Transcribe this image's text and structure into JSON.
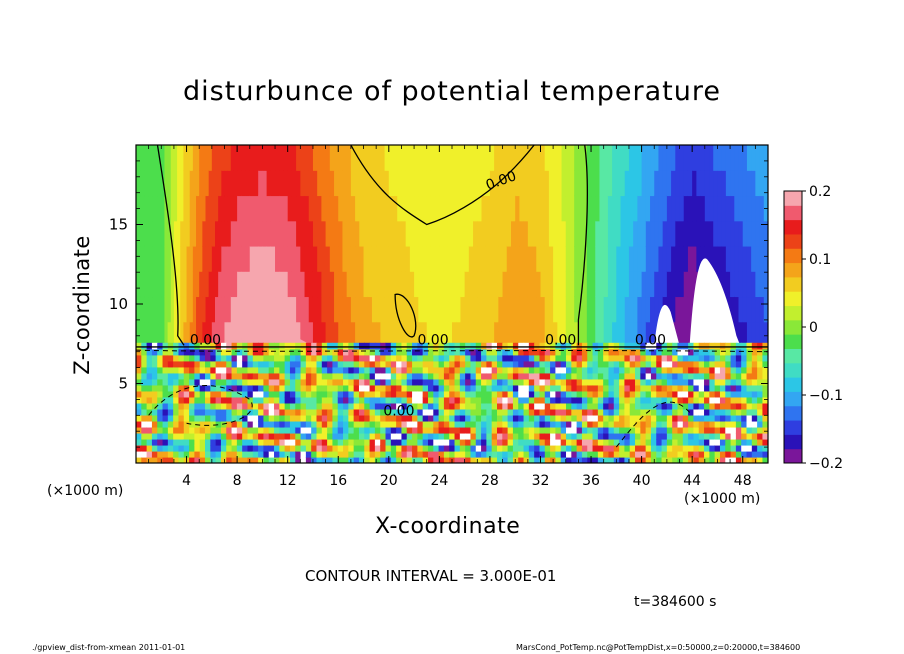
{
  "page": {
    "title": "disturbunce of potential temperature",
    "x_axis_label": "X-coordinate",
    "y_axis_label": "Z-coordinate",
    "x_unit_left": "(×1000 m)",
    "x_unit_right": "(×1000 m)",
    "contour_interval": "CONTOUR INTERVAL = 3.000E-01",
    "time_label": "t=384600 s",
    "footer_left": "./gpview_dist-from-xmean   2011-01-01",
    "footer_right": "MarsCond_PotTemp.nc@PotTempDist,x=0:50000,z=0:20000,t=384600"
  },
  "chart_data": {
    "type": "heatmap",
    "title": "disturbunce of potential temperature",
    "xlabel": "X-coordinate",
    "ylabel": "Z-coordinate",
    "x_unit": "(×1000 m)",
    "xlim": [
      0,
      50
    ],
    "ylim": [
      0,
      20
    ],
    "x_ticks": [
      4,
      8,
      12,
      16,
      20,
      24,
      28,
      32,
      36,
      40,
      44,
      48
    ],
    "y_ticks": [
      5,
      10,
      15
    ],
    "colorbar": {
      "range": [
        -0.2,
        0.2
      ],
      "tick_labels": [
        "0.2",
        "0.1",
        "0",
        "−0.1",
        "−0.2"
      ],
      "tick_values": [
        0.2,
        0.1,
        0,
        -0.1,
        -0.2
      ],
      "colors": [
        "#7a169a",
        "#2a12b8",
        "#2f3ee0",
        "#2f74f0",
        "#33a6f2",
        "#2cc6e6",
        "#40dcc4",
        "#58e8a4",
        "#4cde4c",
        "#8ae838",
        "#c2ef2e",
        "#f0f02a",
        "#f2cc20",
        "#f4a41a",
        "#f47a14",
        "#ec4218",
        "#e81c1c",
        "#f05a6e",
        "#f6a6ae"
      ]
    },
    "contour_labels": [
      "0.00",
      "0.00",
      "0.00",
      "0.00",
      "0.00",
      "0.00"
    ],
    "contour_interval": 0.3,
    "time_s": 384600,
    "upper_layer_columns": [
      {
        "x": 0,
        "value": -0.02
      },
      {
        "x": 2,
        "value": -0.02
      },
      {
        "x": 3.5,
        "value": 0.05
      },
      {
        "x": 5,
        "value": 0.11
      },
      {
        "x": 6.5,
        "value": 0.15
      },
      {
        "x": 8,
        "value": 0.17
      },
      {
        "x": 10,
        "value": 0.18
      },
      {
        "x": 12,
        "value": 0.17
      },
      {
        "x": 14,
        "value": 0.14
      },
      {
        "x": 16,
        "value": 0.1
      },
      {
        "x": 18,
        "value": 0.07
      },
      {
        "x": 20,
        "value": 0.06
      },
      {
        "x": 22,
        "value": 0.05
      },
      {
        "x": 24,
        "value": 0.04
      },
      {
        "x": 26,
        "value": 0.05
      },
      {
        "x": 28,
        "value": 0.06
      },
      {
        "x": 30,
        "value": 0.08
      },
      {
        "x": 32,
        "value": 0.07
      },
      {
        "x": 34,
        "value": 0.03
      },
      {
        "x": 36,
        "value": -0.02
      },
      {
        "x": 38,
        "value": -0.07
      },
      {
        "x": 40,
        "value": -0.11
      },
      {
        "x": 42,
        "value": -0.15
      },
      {
        "x": 44,
        "value": -0.18
      },
      {
        "x": 46,
        "value": -0.16
      },
      {
        "x": 48,
        "value": -0.14
      },
      {
        "x": 50,
        "value": -0.12
      }
    ]
  }
}
